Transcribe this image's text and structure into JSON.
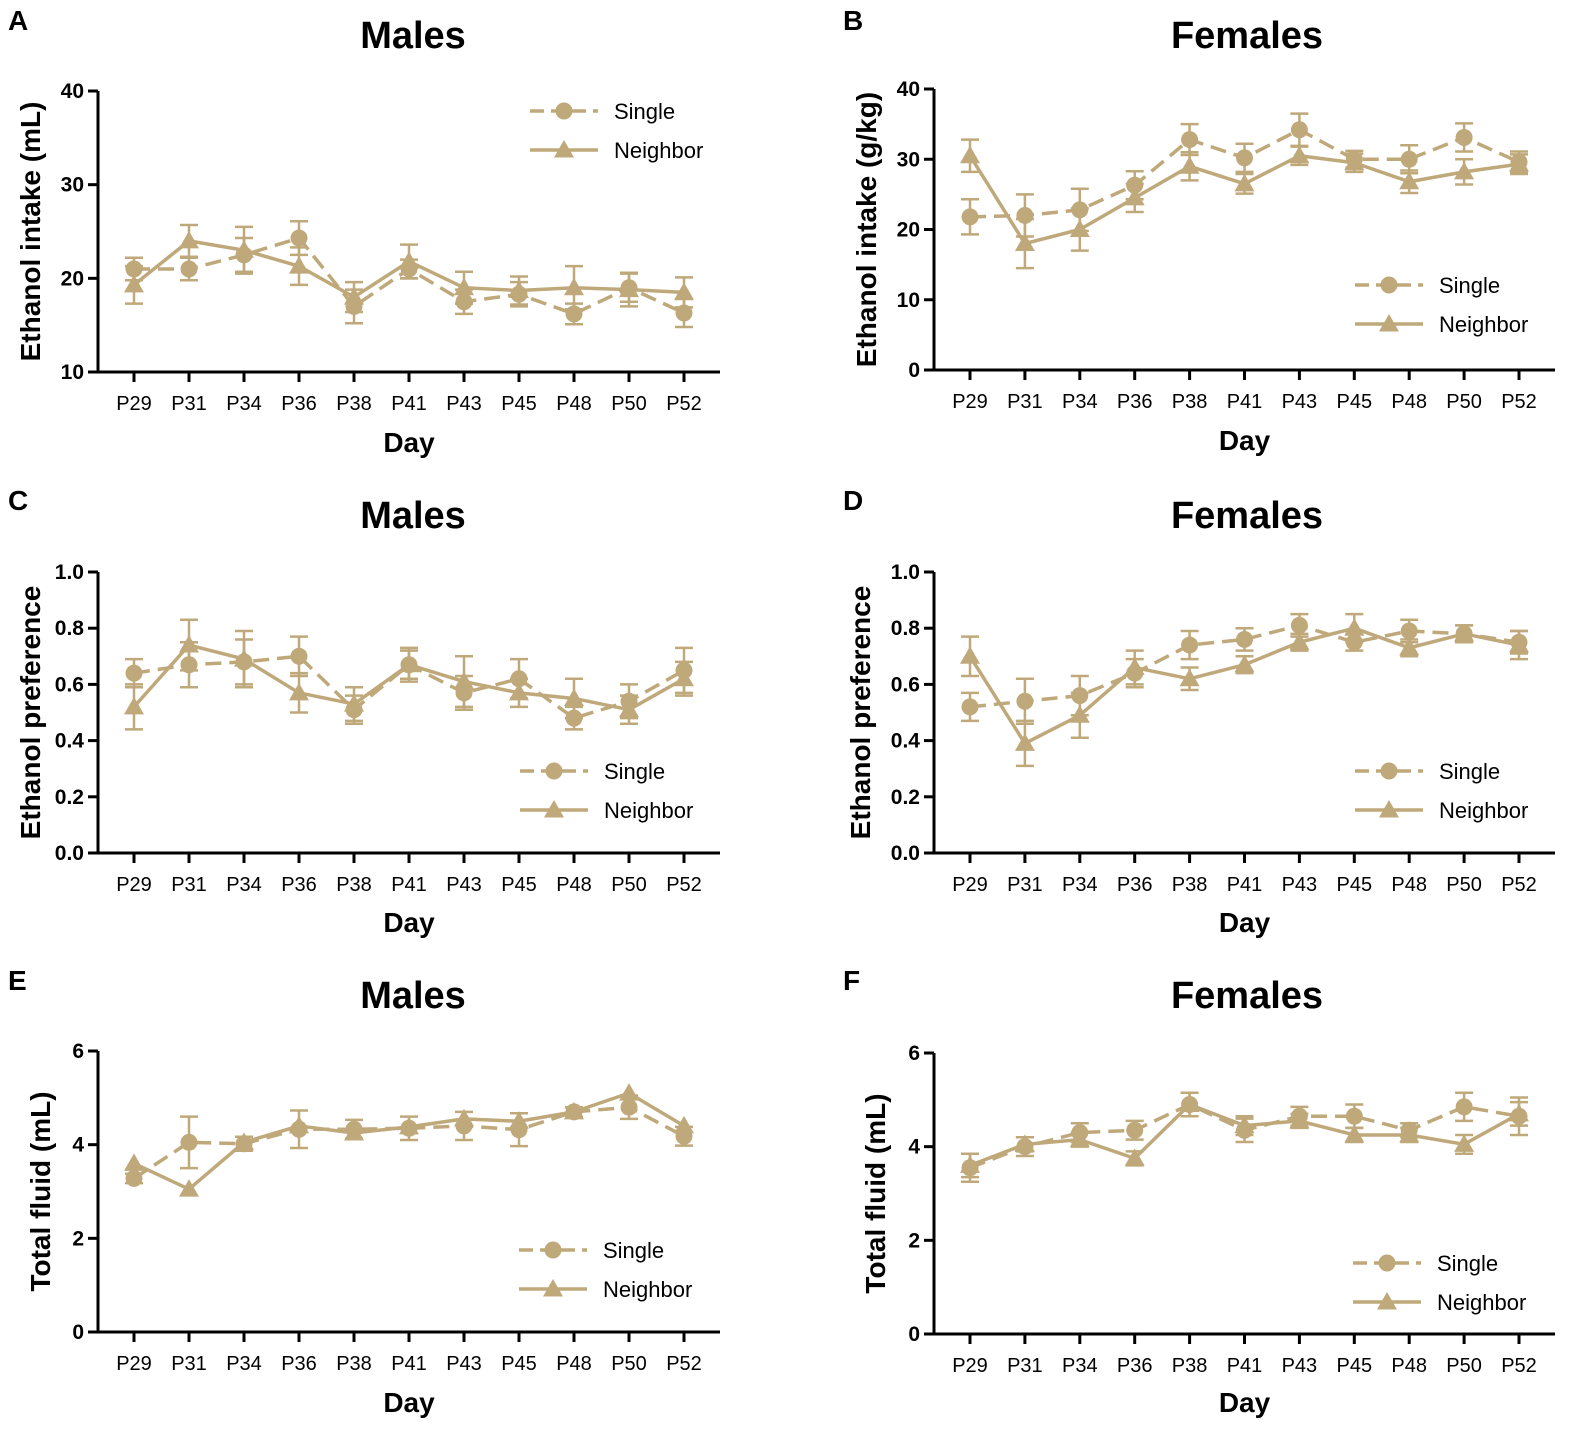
{
  "figure": {
    "series_color": "#bfa87a",
    "axis_color": "#000000"
  },
  "chart_data": [
    {
      "panel": "A",
      "type": "line",
      "title": "Males",
      "xlabel": "Day",
      "ylabel": "Ethanol intake (mL)",
      "categories": [
        "P29",
        "P31",
        "P34",
        "P36",
        "P38",
        "P41",
        "P43",
        "P45",
        "P48",
        "P50",
        "P52"
      ],
      "ylim": [
        10,
        40
      ],
      "yticks": [
        10,
        20,
        30,
        40
      ],
      "legend_position": "top-right",
      "series": [
        {
          "name": "Single",
          "style": "dashed",
          "marker": "circle",
          "values": [
            21.0,
            21.0,
            22.5,
            24.3,
            17.0,
            21.0,
            17.5,
            18.3,
            16.2,
            19.0,
            16.3
          ],
          "errors": [
            1.2,
            1.2,
            1.8,
            1.8,
            1.8,
            1.0,
            1.3,
            1.3,
            1.1,
            1.5,
            1.5
          ]
        },
        {
          "name": "Neighbor",
          "style": "solid",
          "marker": "triangle",
          "values": [
            19.3,
            24.0,
            23.0,
            21.3,
            18.0,
            21.8,
            19.0,
            18.7,
            19.0,
            18.8,
            18.5
          ],
          "errors": [
            2.0,
            1.7,
            2.5,
            2.0,
            1.6,
            1.8,
            1.7,
            1.5,
            2.3,
            1.8,
            1.6
          ]
        }
      ]
    },
    {
      "panel": "B",
      "type": "line",
      "title": "Females",
      "xlabel": "Day",
      "ylabel": "Ethanol intake (g/kg)",
      "categories": [
        "P29",
        "P31",
        "P34",
        "P36",
        "P38",
        "P41",
        "P43",
        "P45",
        "P48",
        "P50",
        "P52"
      ],
      "ylim": [
        0,
        40
      ],
      "yticks": [
        0,
        10,
        20,
        30,
        40
      ],
      "legend_position": "bottom-right",
      "series": [
        {
          "name": "Single",
          "style": "dashed",
          "marker": "circle",
          "values": [
            21.8,
            22.0,
            22.8,
            26.3,
            32.8,
            30.2,
            34.2,
            30.0,
            30.0,
            33.1,
            29.6
          ],
          "errors": [
            2.5,
            3.0,
            3.0,
            2.0,
            2.2,
            2.0,
            2.3,
            1.2,
            2.0,
            2.0,
            1.5
          ]
        },
        {
          "name": "Neighbor",
          "style": "solid",
          "marker": "triangle",
          "values": [
            30.5,
            18.0,
            20.0,
            24.5,
            29.0,
            26.5,
            30.5,
            29.5,
            26.8,
            28.2,
            29.3
          ],
          "errors": [
            2.3,
            3.5,
            3.0,
            2.0,
            2.0,
            1.4,
            1.3,
            1.3,
            1.6,
            1.8,
            1.4
          ]
        }
      ]
    },
    {
      "panel": "C",
      "type": "line",
      "title": "Males",
      "xlabel": "Day",
      "ylabel": "Ethanol preference",
      "categories": [
        "P29",
        "P31",
        "P34",
        "P36",
        "P38",
        "P41",
        "P43",
        "P45",
        "P48",
        "P50",
        "P52"
      ],
      "ylim": [
        0.0,
        1.0
      ],
      "yticks": [
        0.0,
        0.2,
        0.4,
        0.6,
        0.8,
        1.0
      ],
      "legend_position": "bottom-right",
      "series": [
        {
          "name": "Single",
          "style": "dashed",
          "marker": "circle",
          "values": [
            0.64,
            0.67,
            0.68,
            0.7,
            0.51,
            0.67,
            0.57,
            0.62,
            0.48,
            0.54,
            0.65
          ],
          "errors": [
            0.05,
            0.08,
            0.08,
            0.07,
            0.05,
            0.05,
            0.06,
            0.07,
            0.04,
            0.06,
            0.08
          ]
        },
        {
          "name": "Neighbor",
          "style": "solid",
          "marker": "triangle",
          "values": [
            0.52,
            0.74,
            0.69,
            0.57,
            0.53,
            0.67,
            0.61,
            0.57,
            0.55,
            0.51,
            0.62
          ],
          "errors": [
            0.08,
            0.09,
            0.1,
            0.07,
            0.06,
            0.06,
            0.09,
            0.05,
            0.07,
            0.05,
            0.06
          ]
        }
      ]
    },
    {
      "panel": "D",
      "type": "line",
      "title": "Females",
      "xlabel": "Day",
      "ylabel": "Ethanol preference",
      "categories": [
        "P29",
        "P31",
        "P34",
        "P36",
        "P38",
        "P41",
        "P43",
        "P45",
        "P48",
        "P50",
        "P52"
      ],
      "ylim": [
        0.0,
        1.0
      ],
      "yticks": [
        0.0,
        0.2,
        0.4,
        0.6,
        0.8,
        1.0
      ],
      "legend_position": "bottom-right",
      "series": [
        {
          "name": "Single",
          "style": "dashed",
          "marker": "circle",
          "values": [
            0.52,
            0.54,
            0.56,
            0.64,
            0.74,
            0.76,
            0.81,
            0.75,
            0.79,
            0.78,
            0.75
          ],
          "errors": [
            0.05,
            0.08,
            0.07,
            0.05,
            0.05,
            0.04,
            0.04,
            0.03,
            0.04,
            0.03,
            0.04
          ]
        },
        {
          "name": "Neighbor",
          "style": "solid",
          "marker": "triangle",
          "values": [
            0.7,
            0.39,
            0.49,
            0.66,
            0.62,
            0.67,
            0.75,
            0.8,
            0.73,
            0.78,
            0.74
          ],
          "errors": [
            0.07,
            0.08,
            0.08,
            0.06,
            0.04,
            0.03,
            0.03,
            0.05,
            0.03,
            0.03,
            0.05
          ]
        }
      ]
    },
    {
      "panel": "E",
      "type": "line",
      "title": "Males",
      "xlabel": "Day",
      "ylabel": "Total fluid (mL)",
      "categories": [
        "P29",
        "P31",
        "P34",
        "P36",
        "P38",
        "P41",
        "P43",
        "P45",
        "P48",
        "P50",
        "P52"
      ],
      "ylim": [
        0,
        6
      ],
      "yticks": [
        0,
        2,
        4,
        6
      ],
      "legend_position": "bottom-right",
      "series": [
        {
          "name": "Single",
          "style": "dashed",
          "marker": "circle",
          "values": [
            3.28,
            4.05,
            4.02,
            4.33,
            4.33,
            4.35,
            4.4,
            4.32,
            4.7,
            4.8,
            4.18
          ],
          "errors": [
            0.1,
            0.55,
            0.15,
            0.4,
            0.2,
            0.25,
            0.3,
            0.35,
            0.1,
            0.25,
            0.2
          ]
        },
        {
          "name": "Neighbor",
          "style": "solid",
          "marker": "triangle",
          "values": [
            3.6,
            3.05,
            4.05,
            4.4,
            4.25,
            4.38,
            4.55,
            4.5,
            4.7,
            5.1,
            4.4
          ]
        }
      ]
    },
    {
      "panel": "F",
      "type": "line",
      "title": "Females",
      "xlabel": "Day",
      "ylabel": "Total fluid (mL)",
      "categories": [
        "P29",
        "P31",
        "P34",
        "P36",
        "P38",
        "P41",
        "P43",
        "P45",
        "P48",
        "P50",
        "P52"
      ],
      "ylim": [
        0,
        6
      ],
      "yticks": [
        0,
        2,
        4,
        6
      ],
      "legend_position": "bottom-right",
      "series": [
        {
          "name": "Single",
          "style": "dashed",
          "marker": "circle",
          "values": [
            3.55,
            4.0,
            4.3,
            4.35,
            4.9,
            4.35,
            4.65,
            4.65,
            4.35,
            4.85,
            4.65
          ],
          "errors": [
            0.3,
            0.2,
            0.2,
            0.2,
            0.25,
            0.25,
            0.2,
            0.25,
            0.15,
            0.3,
            0.4
          ]
        },
        {
          "name": "Neighbor",
          "style": "solid",
          "marker": "triangle",
          "values": [
            3.6,
            4.05,
            4.15,
            3.75,
            4.9,
            4.45,
            4.55,
            4.25,
            4.25,
            4.05,
            4.7
          ],
          "errors": [
            0.25,
            0.15,
            0.15,
            0.15,
            0.25,
            0.2,
            0.15,
            0.15,
            0.15,
            0.2,
            0.25
          ]
        }
      ]
    }
  ]
}
